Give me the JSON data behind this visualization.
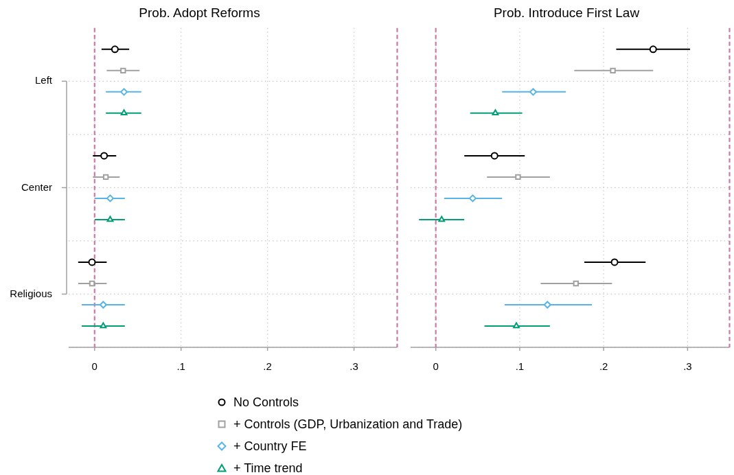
{
  "chart_data": [
    {
      "type": "scatter",
      "orientation": "horizontal",
      "title": "Prob. Adopt Reforms",
      "categories": [
        "Left",
        "Center",
        "Religious"
      ],
      "series": [
        {
          "name": "No Controls",
          "color": "#000000",
          "marker": "circle",
          "values": [
            0.0235,
            0.011,
            -0.003
          ],
          "errors": [
            [
              0.008,
              0.04
            ],
            [
              -0.002,
              0.025
            ],
            [
              -0.019,
              0.014
            ]
          ]
        },
        {
          "name": "+ Controls (GDP, Urbanization and Trade)",
          "color": "#a0a0a0",
          "marker": "square",
          "values": [
            0.033,
            0.013,
            -0.003
          ],
          "errors": [
            [
              0.014,
              0.052
            ],
            [
              -0.002,
              0.029
            ],
            [
              -0.019,
              0.014
            ]
          ]
        },
        {
          "name": "+ Country FE",
          "color": "#56b4e9",
          "marker": "diamond",
          "values": [
            0.034,
            0.018,
            0.01
          ],
          "errors": [
            [
              0.013,
              0.054
            ],
            [
              0.0,
              0.035
            ],
            [
              -0.015,
              0.035
            ]
          ]
        },
        {
          "name": "+ Time trend",
          "color": "#009e73",
          "marker": "triangle",
          "values": [
            0.034,
            0.018,
            0.01
          ],
          "errors": [
            [
              0.013,
              0.054
            ],
            [
              0.0,
              0.035
            ],
            [
              -0.015,
              0.035
            ]
          ]
        }
      ],
      "xlim": [
        -0.03,
        0.35
      ],
      "xticks": [
        0,
        {
          "value": 0.1,
          "label": ".1"
        },
        {
          "value": 0.2,
          "label": ".2"
        },
        {
          "value": 0.3,
          "label": ".3"
        }
      ],
      "ref_lines": [
        {
          "axis": "x",
          "value": 0,
          "color": "#cc79a7",
          "line_style": "dashed"
        },
        {
          "axis": "x",
          "value": 0.35,
          "color": "#cc79a7",
          "line_style": "dashed"
        }
      ],
      "grid": true,
      "legend": "bottom"
    },
    {
      "type": "scatter",
      "orientation": "horizontal",
      "title": "Prob. Introduce First Law",
      "categories": [
        null,
        null,
        null
      ],
      "series": [
        {
          "name": "No Controls",
          "color": "#000000",
          "marker": "circle",
          "values": [
            0.259,
            0.07,
            0.213
          ],
          "errors": [
            [
              0.215,
              0.303
            ],
            [
              0.034,
              0.106
            ],
            [
              0.177,
              0.25
            ]
          ]
        },
        {
          "name": "+ Controls (GDP, Urbanization and Trade)",
          "color": "#a0a0a0",
          "marker": "square",
          "values": [
            0.211,
            0.098,
            0.167
          ],
          "errors": [
            [
              0.165,
              0.259
            ],
            [
              0.061,
              0.136
            ],
            [
              0.125,
              0.21
            ]
          ]
        },
        {
          "name": "+ Country FE",
          "color": "#56b4e9",
          "marker": "diamond",
          "values": [
            0.116,
            0.044,
            0.133
          ],
          "errors": [
            [
              0.079,
              0.155
            ],
            [
              0.01,
              0.079
            ],
            [
              0.082,
              0.186
            ]
          ]
        },
        {
          "name": "+ Time trend",
          "color": "#009e73",
          "marker": "triangle",
          "values": [
            0.071,
            0.007,
            0.096
          ],
          "errors": [
            [
              0.041,
              0.103
            ],
            [
              -0.02,
              0.034
            ],
            [
              0.058,
              0.136
            ]
          ]
        }
      ],
      "xlim": [
        -0.03,
        0.35
      ],
      "xticks": [
        0,
        {
          "value": 0.1,
          "label": ".1"
        },
        {
          "value": 0.2,
          "label": ".2"
        },
        {
          "value": 0.3,
          "label": ".3"
        }
      ],
      "ref_lines": [
        {
          "axis": "x",
          "value": 0,
          "color": "#cc79a7",
          "line_style": "dashed"
        },
        {
          "axis": "x",
          "value": 0.35,
          "color": "#cc79a7",
          "line_style": "dashed"
        }
      ],
      "grid": true,
      "tick_labels": "x",
      "legend": "bottom"
    }
  ]
}
